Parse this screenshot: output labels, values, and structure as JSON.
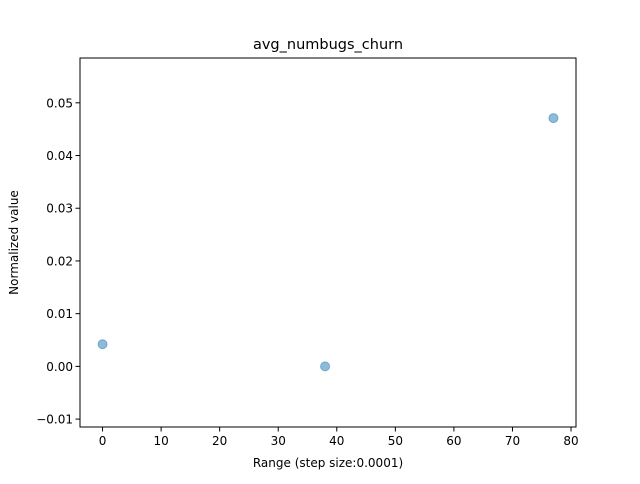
{
  "chart_data": {
    "type": "scatter",
    "title": "avg_numbugs_churn",
    "xlabel": "Range (step size:0.0001)",
    "ylabel": "Normalized value",
    "xlim": [
      -3.85,
      80.85
    ],
    "ylim": [
      -0.0115,
      0.0585
    ],
    "xticks": [
      0,
      10,
      20,
      30,
      40,
      50,
      60,
      70,
      80
    ],
    "xtick_labels": [
      "0",
      "10",
      "20",
      "30",
      "40",
      "50",
      "60",
      "70",
      "80"
    ],
    "yticks": [
      -0.01,
      0.0,
      0.01,
      0.02,
      0.03,
      0.04,
      0.05
    ],
    "ytick_labels": [
      "−0.01",
      "0.00",
      "0.01",
      "0.02",
      "0.03",
      "0.04",
      "0.05"
    ],
    "grid": false,
    "legend": false,
    "series": [
      {
        "x": [
          0,
          38,
          77
        ],
        "y": [
          0.0042,
          0.0,
          0.0471
        ],
        "color": "#1f77b4",
        "alpha": 0.5
      }
    ]
  }
}
